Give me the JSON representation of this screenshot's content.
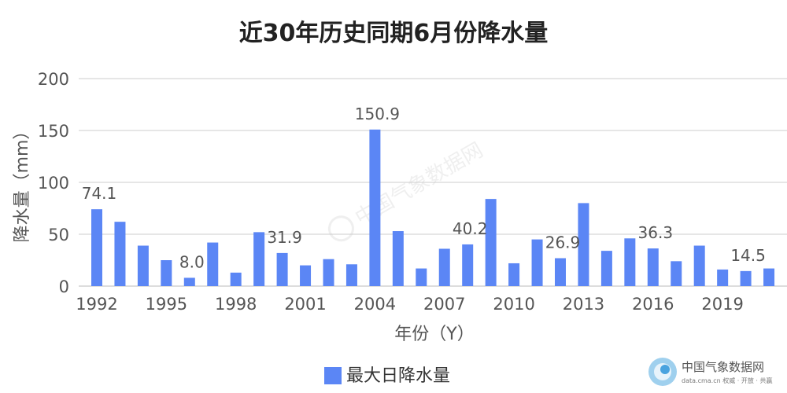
{
  "chart_data": {
    "type": "bar",
    "title": "近30年历史同期6月份降水量",
    "xlabel": "年份（Y）",
    "ylabel": "降水量（mm）",
    "ylim": [
      0,
      200
    ],
    "yticks": [
      0,
      50,
      100,
      150,
      200
    ],
    "xticks": [
      1992,
      1995,
      1998,
      2001,
      2004,
      2007,
      2010,
      2013,
      2016,
      2019
    ],
    "grid": true,
    "legend_position": "bottom",
    "colors": {
      "bar": "#5B86F5",
      "grid": "#CCCCCC"
    },
    "series": [
      {
        "name": "最大日降水量",
        "x": [
          1992,
          1993,
          1994,
          1995,
          1996,
          1997,
          1998,
          1999,
          2000,
          2001,
          2002,
          2003,
          2004,
          2005,
          2006,
          2007,
          2008,
          2009,
          2010,
          2011,
          2012,
          2013,
          2014,
          2015,
          2016,
          2017,
          2018,
          2019,
          2020,
          2021
        ],
        "values": [
          74.1,
          62,
          39,
          25,
          8.0,
          42,
          13,
          52,
          31.9,
          20,
          26,
          21,
          150.9,
          53,
          17,
          36,
          40.2,
          84,
          22,
          45,
          26.9,
          80,
          34,
          46,
          36.3,
          24,
          39,
          16,
          14.5,
          17
        ]
      }
    ],
    "data_labels": [
      {
        "x": 1992,
        "text": "74.1"
      },
      {
        "x": 1996,
        "text": "8.0"
      },
      {
        "x": 2000,
        "text": "31.9"
      },
      {
        "x": 2004,
        "text": "150.9"
      },
      {
        "x": 2008,
        "text": "40.2"
      },
      {
        "x": 2012,
        "text": "26.9"
      },
      {
        "x": 2016,
        "text": "36.3"
      },
      {
        "x": 2020,
        "text": "14.5"
      }
    ]
  },
  "watermark": {
    "center_text": "中国气象数据网",
    "corner_title": "中国气象数据网",
    "corner_sub": "data.cma.cn 权威 · 开放 · 共赢",
    "icon": "cma-logo-icon"
  }
}
